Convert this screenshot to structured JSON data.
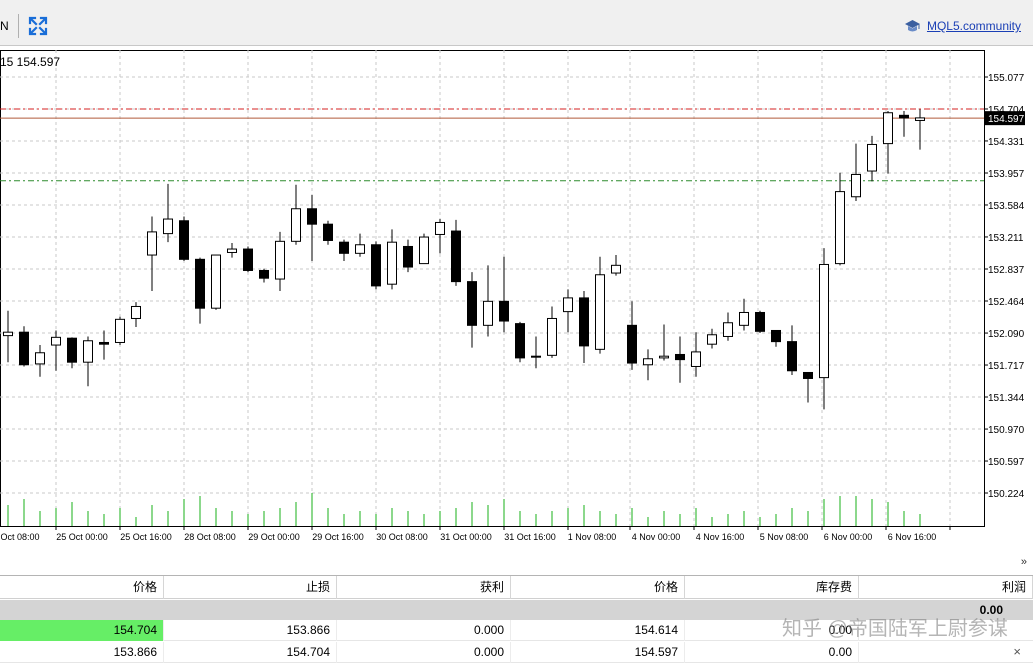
{
  "toolbar": {
    "partial_label": "N",
    "community_link": "MQL5.community"
  },
  "chart": {
    "symbol_info": "15 154.597",
    "current_price_label": "154.597",
    "price_axis": [
      "155.077",
      "154.704",
      "154.331",
      "153.957",
      "153.584",
      "153.211",
      "152.837",
      "152.464",
      "152.090",
      "151.717",
      "151.344",
      "150.970",
      "150.597",
      "150.224"
    ],
    "time_axis": [
      "Oct 08:00",
      "25 Oct 00:00",
      "25 Oct 16:00",
      "28 Oct 08:00",
      "29 Oct 00:00",
      "29 Oct 16:00",
      "30 Oct 08:00",
      "31 Oct 00:00",
      "31 Oct 16:00",
      "1 Nov 08:00",
      "4 Nov 00:00",
      "4 Nov 16:00",
      "5 Nov 08:00",
      "6 Nov 00:00",
      "6 Nov 16:00"
    ],
    "colors": {
      "sl_line": "#2e8b2e",
      "tp_line": "#d42020",
      "price_line": "#b05a3a",
      "volume": "#19b019"
    }
  },
  "chart_data": {
    "type": "candlestick",
    "ylim": [
      150.05,
      155.3
    ],
    "tp_level": 154.704,
    "sl_level": 153.866,
    "current_price": 154.597,
    "candles": [
      {
        "o": 152.06,
        "c": 152.1,
        "h": 152.35,
        "l": 151.75
      },
      {
        "o": 152.1,
        "c": 151.72,
        "h": 152.17,
        "l": 151.7
      },
      {
        "o": 151.73,
        "c": 151.86,
        "h": 151.95,
        "l": 151.58
      },
      {
        "o": 151.95,
        "c": 152.04,
        "h": 152.12,
        "l": 151.65
      },
      {
        "o": 152.03,
        "c": 151.75,
        "h": 152.04,
        "l": 151.68
      },
      {
        "o": 151.75,
        "c": 152.0,
        "h": 152.05,
        "l": 151.47
      },
      {
        "o": 151.98,
        "c": 151.96,
        "h": 152.12,
        "l": 151.78
      },
      {
        "o": 151.98,
        "c": 152.25,
        "h": 152.28,
        "l": 151.95
      },
      {
        "o": 152.26,
        "c": 152.4,
        "h": 152.45,
        "l": 152.16
      },
      {
        "o": 153.0,
        "c": 153.27,
        "h": 153.45,
        "l": 152.58
      },
      {
        "o": 153.25,
        "c": 153.42,
        "h": 153.83,
        "l": 153.15
      },
      {
        "o": 153.4,
        "c": 152.95,
        "h": 153.45,
        "l": 152.93
      },
      {
        "o": 152.95,
        "c": 152.38,
        "h": 152.97,
        "l": 152.2
      },
      {
        "o": 152.38,
        "c": 153.0,
        "h": 153.0,
        "l": 152.36
      },
      {
        "o": 153.03,
        "c": 153.07,
        "h": 153.14,
        "l": 152.97
      },
      {
        "o": 153.07,
        "c": 152.82,
        "h": 153.1,
        "l": 152.8
      },
      {
        "o": 152.82,
        "c": 152.73,
        "h": 152.84,
        "l": 152.68
      },
      {
        "o": 152.72,
        "c": 153.16,
        "h": 153.27,
        "l": 152.58
      },
      {
        "o": 153.16,
        "c": 153.54,
        "h": 153.82,
        "l": 153.12
      },
      {
        "o": 153.54,
        "c": 153.36,
        "h": 153.7,
        "l": 152.93
      },
      {
        "o": 153.36,
        "c": 153.17,
        "h": 153.4,
        "l": 153.12
      },
      {
        "o": 153.15,
        "c": 153.02,
        "h": 153.18,
        "l": 152.93
      },
      {
        "o": 153.02,
        "c": 153.12,
        "h": 153.25,
        "l": 152.98
      },
      {
        "o": 153.12,
        "c": 152.64,
        "h": 153.16,
        "l": 152.6
      },
      {
        "o": 152.66,
        "c": 153.15,
        "h": 153.3,
        "l": 152.6
      },
      {
        "o": 153.1,
        "c": 152.86,
        "h": 153.18,
        "l": 152.8
      },
      {
        "o": 152.9,
        "c": 153.21,
        "h": 153.25,
        "l": 152.9
      },
      {
        "o": 153.24,
        "c": 153.38,
        "h": 153.42,
        "l": 153.02
      },
      {
        "o": 153.28,
        "c": 152.69,
        "h": 153.41,
        "l": 152.64
      },
      {
        "o": 152.69,
        "c": 152.18,
        "h": 152.8,
        "l": 151.92
      },
      {
        "o": 152.18,
        "c": 152.46,
        "h": 152.88,
        "l": 152.05
      },
      {
        "o": 152.46,
        "c": 152.23,
        "h": 152.98,
        "l": 152.1
      },
      {
        "o": 152.2,
        "c": 151.8,
        "h": 152.22,
        "l": 151.75
      },
      {
        "o": 151.82,
        "c": 151.82,
        "h": 152.05,
        "l": 151.68
      },
      {
        "o": 151.83,
        "c": 152.26,
        "h": 152.4,
        "l": 151.8
      },
      {
        "o": 152.34,
        "c": 152.5,
        "h": 152.6,
        "l": 152.1
      },
      {
        "o": 152.5,
        "c": 151.94,
        "h": 152.58,
        "l": 151.74
      },
      {
        "o": 151.9,
        "c": 152.77,
        "h": 152.98,
        "l": 151.85
      },
      {
        "o": 152.79,
        "c": 152.88,
        "h": 153.0,
        "l": 152.76
      },
      {
        "o": 152.18,
        "c": 151.74,
        "h": 152.46,
        "l": 151.66
      },
      {
        "o": 151.72,
        "c": 151.79,
        "h": 151.9,
        "l": 151.54
      },
      {
        "o": 151.8,
        "c": 151.82,
        "h": 152.19,
        "l": 151.77
      },
      {
        "o": 151.84,
        "c": 151.78,
        "h": 152.05,
        "l": 151.51
      },
      {
        "o": 151.7,
        "c": 151.87,
        "h": 152.1,
        "l": 151.58
      },
      {
        "o": 151.96,
        "c": 152.07,
        "h": 152.14,
        "l": 151.91
      },
      {
        "o": 152.05,
        "c": 152.21,
        "h": 152.33,
        "l": 152.0
      },
      {
        "o": 152.18,
        "c": 152.33,
        "h": 152.49,
        "l": 152.12
      },
      {
        "o": 152.33,
        "c": 152.11,
        "h": 152.35,
        "l": 152.09
      },
      {
        "o": 152.12,
        "c": 151.99,
        "h": 152.12,
        "l": 151.93
      },
      {
        "o": 151.99,
        "c": 151.65,
        "h": 152.18,
        "l": 151.6
      },
      {
        "o": 151.63,
        "c": 151.56,
        "h": 151.63,
        "l": 151.28
      },
      {
        "o": 151.57,
        "c": 152.89,
        "h": 153.08,
        "l": 151.2
      },
      {
        "o": 152.9,
        "c": 153.74,
        "h": 153.96,
        "l": 152.88
      },
      {
        "o": 153.68,
        "c": 153.94,
        "h": 154.3,
        "l": 153.63
      },
      {
        "o": 153.98,
        "c": 154.29,
        "h": 154.39,
        "l": 153.86
      },
      {
        "o": 154.3,
        "c": 154.66,
        "h": 154.68,
        "l": 153.95
      },
      {
        "o": 154.63,
        "c": 154.6,
        "h": 154.68,
        "l": 154.38
      },
      {
        "o": 154.57,
        "c": 154.6,
        "h": 154.7,
        "l": 154.23
      }
    ],
    "volumes": [
      0.7,
      0.9,
      0.5,
      0.6,
      0.8,
      0.5,
      0.4,
      0.6,
      0.3,
      0.7,
      0.5,
      0.9,
      1.0,
      0.6,
      0.5,
      0.4,
      0.5,
      0.6,
      0.8,
      1.1,
      0.6,
      0.4,
      0.5,
      0.4,
      0.6,
      0.5,
      0.4,
      0.5,
      0.6,
      0.8,
      0.7,
      0.9,
      0.5,
      0.4,
      0.5,
      0.6,
      0.7,
      0.5,
      0.4,
      0.6,
      0.3,
      0.5,
      0.4,
      0.6,
      0.3,
      0.4,
      0.5,
      0.3,
      0.4,
      0.6,
      0.5,
      0.9,
      1.0,
      1.0,
      0.9,
      0.8,
      0.5,
      0.4
    ]
  },
  "panel": {
    "headers": [
      "价格",
      "止损",
      "获利",
      "价格",
      "库存费",
      "利润"
    ],
    "summary_profit": "0.00",
    "rows": [
      {
        "price_open": "154.704",
        "sl": "153.866",
        "tp": "0.000",
        "price_current": "154.614",
        "swap": "0.00"
      },
      {
        "price_open": "153.866",
        "sl": "154.704",
        "tp": "0.000",
        "price_current": "154.597",
        "swap": "0.00"
      }
    ],
    "scroll_icon": "»",
    "close_icon": "×"
  },
  "watermark": "知乎 @帝国陆军上尉参谋"
}
